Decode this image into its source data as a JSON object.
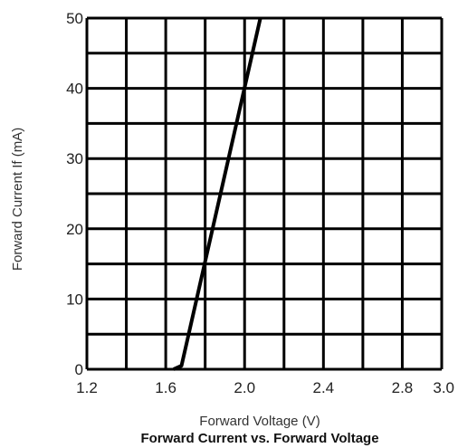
{
  "chart_data": {
    "type": "line",
    "title": "Forward Current vs. Forward Voltage",
    "xlabel": "Forward Voltage (V)",
    "ylabel": "Forward Current If (mA)",
    "xlim": [
      1.2,
      3.0
    ],
    "ylim": [
      0,
      50
    ],
    "x_ticks": [
      "1.2",
      "1.6",
      "2.0",
      "2.4",
      "2.8",
      "3.0"
    ],
    "y_ticks": [
      "0",
      "10",
      "20",
      "30",
      "40",
      "50"
    ],
    "x_minor_step": 0.2,
    "y_minor_step": 5,
    "grid": true,
    "series": [
      {
        "x": [
          1.64,
          1.68,
          2.08
        ],
        "y": [
          0,
          0.5,
          50
        ]
      }
    ],
    "colors": {
      "line": "#000000",
      "grid": "#000000"
    }
  }
}
